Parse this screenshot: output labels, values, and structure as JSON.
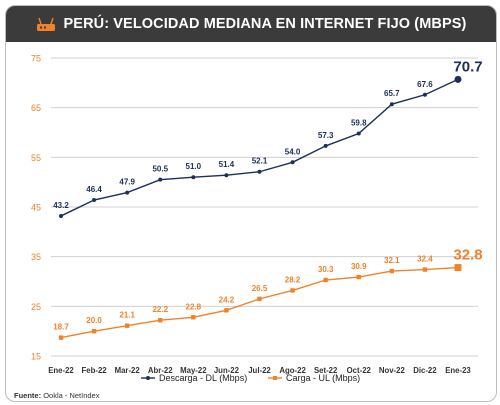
{
  "header": {
    "title": "PERÚ: VELOCIDAD MEDIANA EN INTERNET FIJO (MBPS)",
    "icon": "router-icon"
  },
  "footer": {
    "source_label": "Fuente:",
    "source_text": "Ookla - NetIndex"
  },
  "colors": {
    "download": "#1b2f5b",
    "upload": "#f0822a",
    "tick_label": "#f0822a",
    "grid": "#d0d0d0",
    "header_bg": "#3b3b3b"
  },
  "chart_data": {
    "type": "line",
    "title": "PERÚ: VELOCIDAD MEDIANA EN INTERNET FIJO (MBPS)",
    "categories": [
      "Ene-22",
      "Feb-22",
      "Mar-22",
      "Abr-22",
      "May-22",
      "Jun-22",
      "Jul-22",
      "Ago-22",
      "Set-22",
      "Oct-22",
      "Nov-22",
      "Dic-22",
      "Ene-23"
    ],
    "series": [
      {
        "name": "Descarga - DL (Mbps)",
        "color": "#1b2f5b",
        "marker": "circle",
        "values": [
          43.2,
          46.4,
          47.9,
          50.5,
          51.0,
          51.4,
          52.1,
          54.0,
          57.3,
          59.8,
          65.7,
          67.6,
          70.7
        ],
        "labels": [
          "43.2",
          "46.4",
          "47.9",
          "50.5",
          "51.0",
          "51.4",
          "52.1",
          "54.0",
          "57.3",
          "59.8",
          "65.7",
          "67.6",
          "70.7"
        ]
      },
      {
        "name": "Carga - UL (Mbps)",
        "color": "#f0822a",
        "marker": "square",
        "values": [
          18.7,
          20.0,
          21.1,
          22.2,
          22.8,
          24.2,
          26.5,
          28.2,
          30.3,
          30.9,
          32.1,
          32.4,
          32.8
        ],
        "labels": [
          "18.7",
          "20.0",
          "21.1",
          "22.2",
          "22.8",
          "24.2",
          "26.5",
          "28.2",
          "30.3",
          "30.9",
          "32.1",
          "32.4",
          "32.8"
        ]
      }
    ],
    "yticks": [
      15,
      25,
      35,
      45,
      55,
      65,
      75
    ],
    "ytick_labels": [
      "15",
      "25",
      "35",
      "45",
      "55",
      "65",
      "75"
    ],
    "ylim": [
      15,
      75
    ],
    "grid": true,
    "legend_position": "bottom"
  }
}
